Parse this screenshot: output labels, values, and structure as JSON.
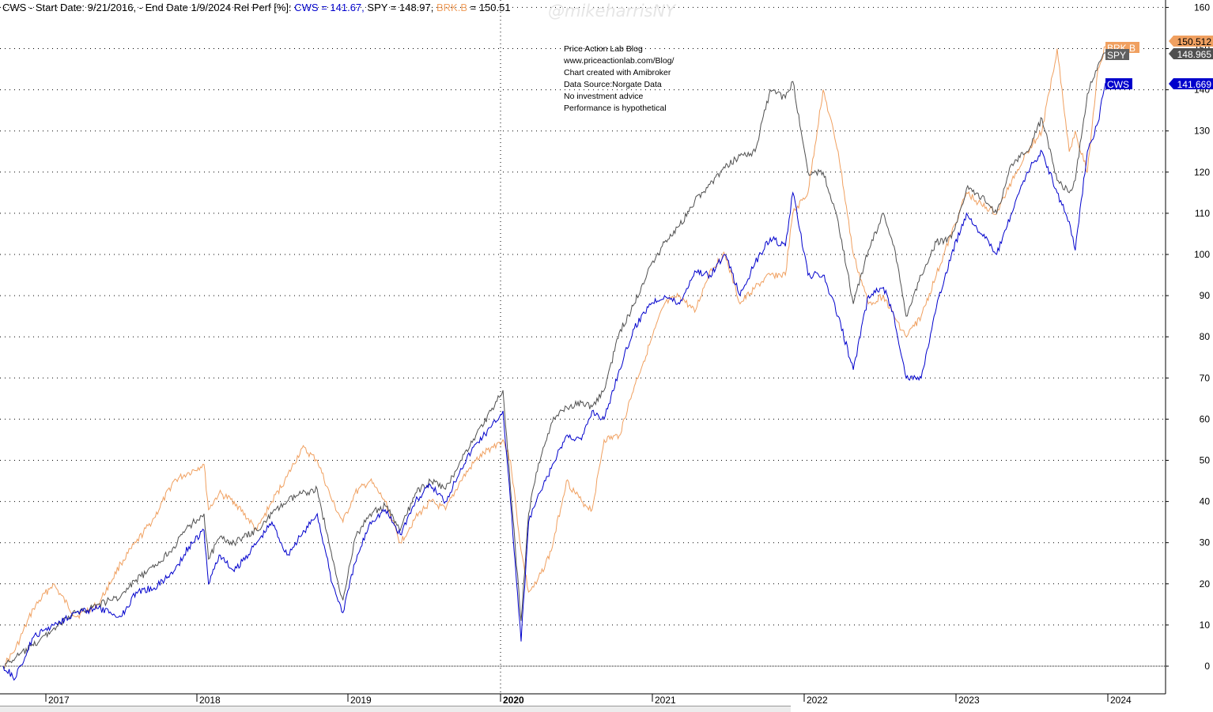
{
  "header": {
    "prefix": "CWS - Start Date: 9/21/2016, - End Date 1/9/2024 Rel Perf [%]: ",
    "cws_part": "CWS = 141.67,",
    "spy_part": " SPY = 148.97, ",
    "brk_name": "BRK.B",
    "brk_value": " = 150.51"
  },
  "watermark": "@mikeharrisNY",
  "info_lines": [
    "Price Action Lab Blog",
    "www.priceactionlab.com/Blog/",
    "Chart created with Amibroker",
    "Data Source:Norgate Data",
    "No investment advice",
    "Performance is hypothetical"
  ],
  "chart_data": {
    "type": "line",
    "ylim": [
      -7,
      162
    ],
    "yticks": [
      0,
      10,
      20,
      30,
      40,
      50,
      60,
      70,
      80,
      90,
      100,
      110,
      120,
      130,
      140,
      150,
      160
    ],
    "xlabels": [
      "2017",
      "2018",
      "2019",
      "2020",
      "2021",
      "2022",
      "2023",
      "2024"
    ],
    "colors": {
      "CWS": "#0000cc",
      "SPY": "#505050",
      "BRK.B": "#f0a060"
    },
    "series": [
      {
        "name": "CWS",
        "last_value": "141.669",
        "x": [
          2016.72,
          2016.8,
          2016.92,
          2017.05,
          2017.2,
          2017.35,
          2017.5,
          2017.6,
          2017.72,
          2017.85,
          2017.95,
          2018.05,
          2018.08,
          2018.15,
          2018.25,
          2018.4,
          2018.5,
          2018.6,
          2018.7,
          2018.8,
          2018.9,
          2018.97,
          2019.05,
          2019.15,
          2019.25,
          2019.35,
          2019.45,
          2019.55,
          2019.65,
          2019.75,
          2019.85,
          2019.95,
          2020.03,
          2020.08,
          2020.15,
          2020.2,
          2020.25,
          2020.35,
          2020.45,
          2020.55,
          2020.62,
          2020.7,
          2020.8,
          2020.9,
          2021.0,
          2021.1,
          2021.2,
          2021.3,
          2021.4,
          2021.5,
          2021.6,
          2021.7,
          2021.8,
          2021.9,
          2021.95,
          2022.05,
          2022.15,
          2022.25,
          2022.35,
          2022.45,
          2022.55,
          2022.62,
          2022.7,
          2022.8,
          2022.9,
          2023.0,
          2023.1,
          2023.2,
          2023.3,
          2023.4,
          2023.5,
          2023.6,
          2023.7,
          2023.78,
          2023.82,
          2023.9,
          2023.97,
          2024.02
        ],
        "y": [
          0,
          -3,
          7,
          10,
          13,
          14,
          12,
          18,
          19,
          23,
          29,
          33,
          20,
          27,
          23,
          30,
          35,
          27,
          32,
          37,
          20,
          13,
          25,
          35,
          38,
          32,
          40,
          44,
          40,
          48,
          54,
          58,
          62,
          40,
          6,
          35,
          40,
          48,
          56,
          55,
          62,
          60,
          72,
          82,
          88,
          90,
          88,
          96,
          95,
          100,
          90,
          98,
          104,
          102,
          115,
          95,
          95,
          85,
          72,
          90,
          92,
          85,
          70,
          70,
          87,
          100,
          110,
          105,
          100,
          110,
          120,
          125,
          115,
          108,
          101,
          125,
          132,
          141.67
        ]
      },
      {
        "name": "SPY",
        "last_value": "148.965",
        "x": [
          2016.72,
          2016.8,
          2016.92,
          2017.05,
          2017.2,
          2017.35,
          2017.5,
          2017.6,
          2017.72,
          2017.85,
          2017.95,
          2018.05,
          2018.08,
          2018.15,
          2018.25,
          2018.4,
          2018.5,
          2018.6,
          2018.7,
          2018.8,
          2018.9,
          2018.97,
          2019.05,
          2019.15,
          2019.25,
          2019.35,
          2019.45,
          2019.55,
          2019.65,
          2019.75,
          2019.85,
          2019.95,
          2020.03,
          2020.08,
          2020.15,
          2020.2,
          2020.25,
          2020.35,
          2020.45,
          2020.55,
          2020.62,
          2020.7,
          2020.8,
          2020.9,
          2021.0,
          2021.1,
          2021.2,
          2021.3,
          2021.4,
          2021.5,
          2021.6,
          2021.7,
          2021.8,
          2021.9,
          2021.95,
          2022.05,
          2022.15,
          2022.25,
          2022.35,
          2022.45,
          2022.55,
          2022.62,
          2022.7,
          2022.8,
          2022.9,
          2023.0,
          2023.1,
          2023.2,
          2023.3,
          2023.4,
          2023.5,
          2023.6,
          2023.7,
          2023.78,
          2023.82,
          2023.9,
          2023.97,
          2024.02
        ],
        "y": [
          0,
          2,
          5,
          9,
          13,
          15,
          17,
          21,
          24,
          29,
          34,
          37,
          26,
          31,
          30,
          33,
          37,
          40,
          42,
          43,
          26,
          16,
          31,
          37,
          39,
          33,
          42,
          45,
          43,
          50,
          56,
          62,
          67,
          43,
          11,
          37,
          47,
          59,
          63,
          64,
          63,
          67,
          81,
          88,
          97,
          103,
          107,
          113,
          117,
          121,
          124,
          125,
          140,
          138,
          142,
          120,
          120,
          108,
          88,
          101,
          110,
          102,
          85,
          95,
          103,
          104,
          116,
          114,
          110,
          122,
          125,
          133,
          118,
          115,
          118,
          139,
          146,
          148.97
        ]
      },
      {
        "name": "BRK.B",
        "last_value": "150.512",
        "x": [
          2016.72,
          2016.8,
          2016.92,
          2017.05,
          2017.2,
          2017.35,
          2017.5,
          2017.6,
          2017.72,
          2017.85,
          2017.95,
          2018.05,
          2018.08,
          2018.15,
          2018.25,
          2018.4,
          2018.5,
          2018.6,
          2018.7,
          2018.8,
          2018.9,
          2018.97,
          2019.05,
          2019.15,
          2019.25,
          2019.35,
          2019.45,
          2019.55,
          2019.65,
          2019.75,
          2019.85,
          2019.95,
          2020.03,
          2020.08,
          2020.15,
          2020.2,
          2020.25,
          2020.35,
          2020.45,
          2020.55,
          2020.62,
          2020.7,
          2020.8,
          2020.9,
          2021.0,
          2021.1,
          2021.2,
          2021.3,
          2021.4,
          2021.5,
          2021.6,
          2021.7,
          2021.8,
          2021.9,
          2021.95,
          2022.05,
          2022.15,
          2022.25,
          2022.35,
          2022.45,
          2022.55,
          2022.62,
          2022.7,
          2022.8,
          2022.9,
          2023.0,
          2023.1,
          2023.2,
          2023.3,
          2023.4,
          2023.5,
          2023.6,
          2023.7,
          2023.78,
          2023.82,
          2023.9,
          2023.97,
          2024.02
        ],
        "y": [
          0,
          4,
          14,
          20,
          12,
          15,
          25,
          30,
          36,
          45,
          47,
          49,
          38,
          42,
          40,
          33,
          40,
          46,
          53,
          50,
          40,
          35,
          42,
          45,
          40,
          30,
          36,
          40,
          38,
          45,
          50,
          53,
          55,
          50,
          28,
          18,
          20,
          28,
          45,
          40,
          38,
          55,
          56,
          68,
          78,
          88,
          90,
          86,
          96,
          100,
          88,
          92,
          95,
          95,
          110,
          115,
          140,
          125,
          100,
          88,
          90,
          85,
          80,
          85,
          95,
          105,
          115,
          112,
          110,
          118,
          125,
          130,
          150,
          125,
          130,
          120,
          145,
          150.51
        ]
      }
    ]
  }
}
